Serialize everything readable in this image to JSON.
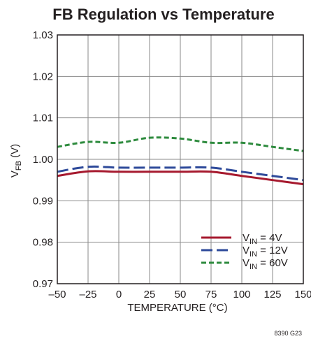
{
  "chart_data": {
    "type": "line",
    "title": "FB Regulation vs Temperature",
    "xlabel": "TEMPERATURE (°C)",
    "ylabel": {
      "main": "V",
      "sub": "FB",
      "unit": " (V)"
    },
    "xlim": [
      -50,
      150
    ],
    "ylim": [
      0.97,
      1.03
    ],
    "x_ticks": [
      "–50",
      "–25",
      "0",
      "25",
      "50",
      "75",
      "100",
      "125",
      "150"
    ],
    "y_ticks": [
      "0.97",
      "0.98",
      "0.99",
      "1.00",
      "1.01",
      "1.02",
      "1.03"
    ],
    "grid": true,
    "legend_position": "bottom-right",
    "series": [
      {
        "legend": {
          "main": "V",
          "sub": "IN",
          "rest": " = 4V"
        },
        "color": "#a6192e",
        "style": "solid",
        "x": [
          -50,
          -25,
          0,
          25,
          50,
          75,
          100,
          125,
          150
        ],
        "values": [
          0.996,
          0.9971,
          0.997,
          0.997,
          0.997,
          0.997,
          0.996,
          0.995,
          0.994
        ]
      },
      {
        "legend": {
          "main": "V",
          "sub": "IN",
          "rest": " = 12V"
        },
        "color": "#2e4a9a",
        "style": "long-dash",
        "x": [
          -50,
          -25,
          0,
          25,
          50,
          75,
          100,
          125,
          150
        ],
        "values": [
          0.997,
          0.9982,
          0.998,
          0.998,
          0.998,
          0.998,
          0.997,
          0.996,
          0.995
        ]
      },
      {
        "legend": {
          "main": "V",
          "sub": "IN",
          "rest": " = 60V"
        },
        "color": "#2e8b3e",
        "style": "short-dash",
        "x": [
          -50,
          -25,
          0,
          25,
          50,
          75,
          100,
          125,
          150
        ],
        "values": [
          1.003,
          1.0042,
          1.004,
          1.0052,
          1.005,
          1.004,
          1.004,
          1.003,
          1.002
        ]
      }
    ]
  },
  "figure_id": "8390 G23"
}
